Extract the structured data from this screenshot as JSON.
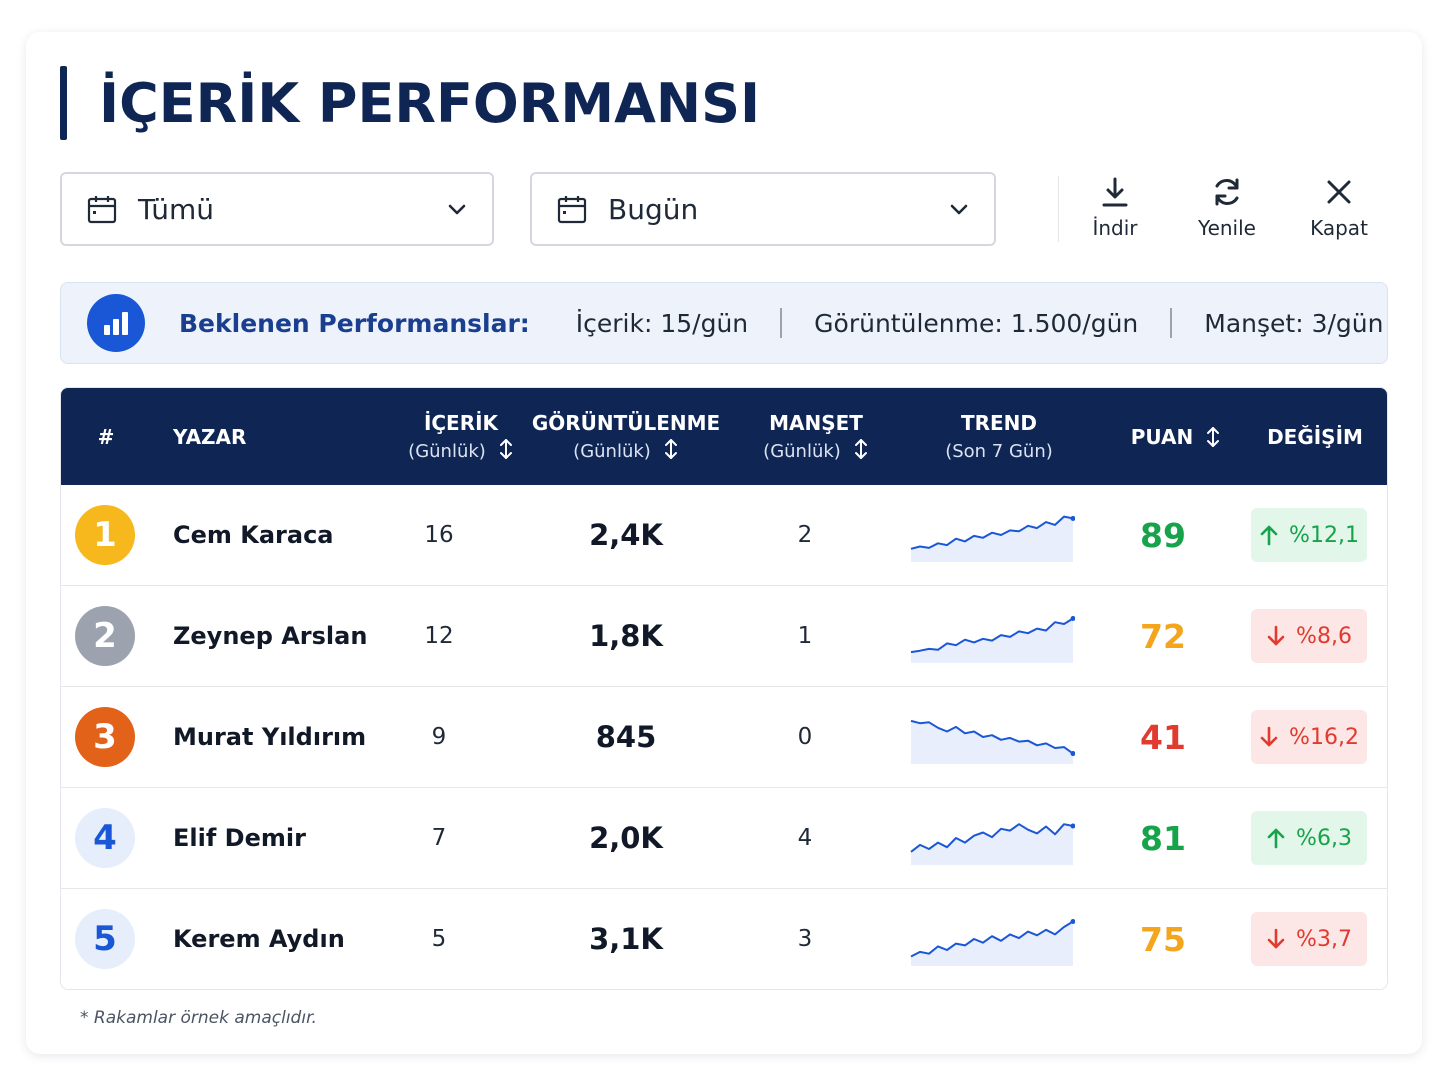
{
  "title": "İÇERİK PERFORMANSI",
  "filters": {
    "category": {
      "value": "Tümü",
      "icon": "calendar-icon"
    },
    "period": {
      "value": "Bugün",
      "icon": "calendar-icon"
    }
  },
  "actions": [
    {
      "label": "İndir",
      "icon": "download-icon"
    },
    {
      "label": "Yenile",
      "icon": "refresh-icon"
    },
    {
      "label": "Kapat",
      "icon": "close-icon"
    }
  ],
  "expectations": {
    "heading": "Beklenen Performanslar:",
    "items": [
      "İçerik: 15/gün",
      "Görüntülenme: 1.500/gün",
      "Manşet: 3/gün"
    ],
    "icon": "bar-chart-icon"
  },
  "table": {
    "headers": {
      "rank": "#",
      "author": "YAZAR",
      "content": "İÇERİK",
      "content_sub": "(Günlük)",
      "views": "GÖRÜNTÜLENME",
      "views_sub": "(Günlük)",
      "headline": "MANŞET",
      "headline_sub": "(Günlük)",
      "trend": "TREND",
      "trend_sub": "(Son 7 Gün)",
      "score": "PUAN",
      "change": "DEĞİŞİM"
    },
    "rows": [
      {
        "rank": "1",
        "author": "Cem Karaca",
        "content": "16",
        "views": "2,4K",
        "headline": "2",
        "score": "89",
        "change": "%12,1",
        "direction": "up",
        "trend": [
          0.2,
          0.25,
          0.22,
          0.32,
          0.28,
          0.42,
          0.36,
          0.48,
          0.44,
          0.55,
          0.5,
          0.6,
          0.58,
          0.7,
          0.65,
          0.78,
          0.72,
          0.9,
          0.86
        ]
      },
      {
        "rank": "2",
        "author": "Zeynep Arslan",
        "content": "12",
        "views": "1,8K",
        "headline": "1",
        "score": "72",
        "change": "%8,6",
        "direction": "down",
        "trend": [
          0.15,
          0.18,
          0.22,
          0.2,
          0.34,
          0.3,
          0.42,
          0.36,
          0.44,
          0.4,
          0.52,
          0.48,
          0.6,
          0.56,
          0.66,
          0.62,
          0.8,
          0.76,
          0.88
        ]
      },
      {
        "rank": "3",
        "author": "Murat Yıldırım",
        "content": "9",
        "views": "845",
        "headline": "0",
        "score": "41",
        "change": "%16,2",
        "direction": "down",
        "trend": [
          0.85,
          0.8,
          0.82,
          0.7,
          0.62,
          0.72,
          0.58,
          0.62,
          0.5,
          0.54,
          0.44,
          0.48,
          0.4,
          0.42,
          0.32,
          0.36,
          0.26,
          0.28,
          0.14
        ]
      },
      {
        "rank": "4",
        "author": "Elif Demir",
        "content": "7",
        "views": "2,0K",
        "headline": "4",
        "score": "81",
        "change": "%6,3",
        "direction": "up",
        "trend": [
          0.2,
          0.35,
          0.26,
          0.4,
          0.3,
          0.5,
          0.4,
          0.55,
          0.62,
          0.52,
          0.7,
          0.66,
          0.8,
          0.68,
          0.6,
          0.75,
          0.58,
          0.8,
          0.76
        ]
      },
      {
        "rank": "5",
        "author": "Kerem Aydın",
        "content": "5",
        "views": "3,1K",
        "headline": "3",
        "score": "75",
        "change": "%3,7",
        "direction": "down",
        "trend": [
          0.12,
          0.22,
          0.18,
          0.34,
          0.26,
          0.4,
          0.36,
          0.5,
          0.42,
          0.56,
          0.46,
          0.6,
          0.52,
          0.66,
          0.58,
          0.7,
          0.6,
          0.76,
          0.88
        ]
      }
    ]
  },
  "footnote": "* Rakamlar örnek amaçlıdır.",
  "colors": {
    "navy": "#0f2554",
    "accent_blue": "#1a57d6",
    "score_green": "#16a34a",
    "score_orange": "#f4a51c",
    "score_red": "#e03b2e",
    "rank_gold": "#f6b81c",
    "rank_silver": "#9ca3af",
    "rank_bronze": "#e2621a",
    "rank_plain_bg": "#e6edfb",
    "up_bg": "#e3f6ea",
    "down_bg": "#fde6e6"
  }
}
